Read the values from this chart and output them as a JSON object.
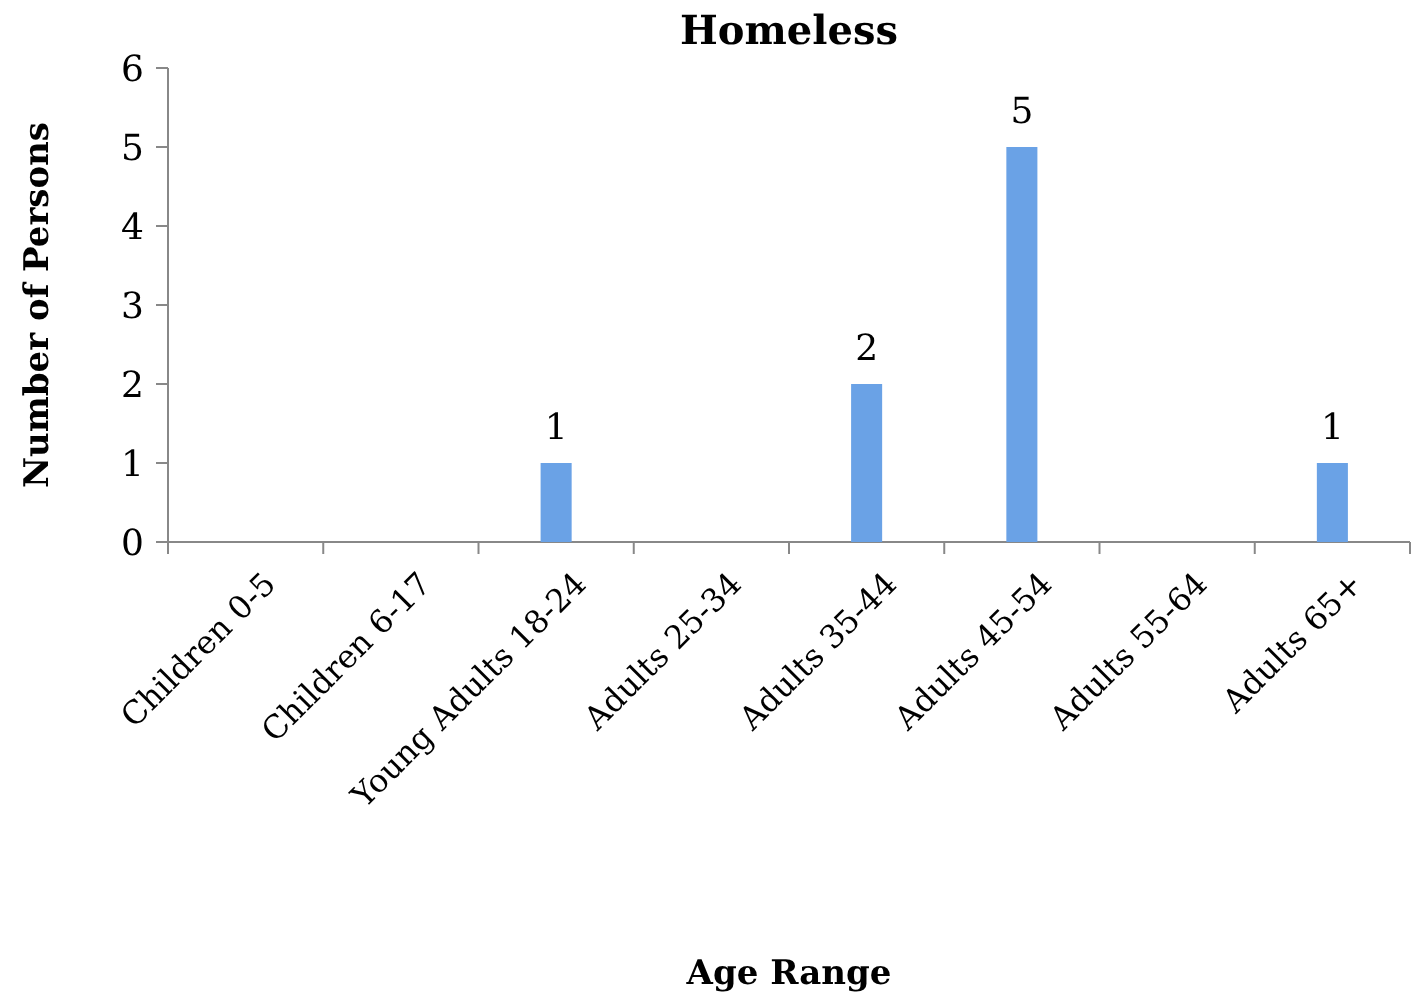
{
  "chart_data": {
    "type": "bar",
    "title": "Homeless",
    "xlabel": "Age Range",
    "ylabel": "Number of Persons",
    "categories": [
      "Children 0-5",
      "Children 6-17",
      "Young Adults 18-24",
      "Adults 25-34",
      "Adults 35-44",
      "Adults 45-54",
      "Adults 55-64",
      "Adults 65+"
    ],
    "values": [
      0,
      0,
      1,
      0,
      2,
      5,
      0,
      1
    ],
    "value_labels": [
      null,
      null,
      "1",
      null,
      "2",
      "5",
      null,
      "1"
    ],
    "color": "#6aa2e6",
    "ylim": [
      0,
      6
    ],
    "yticks": [
      0,
      1,
      2,
      3,
      4,
      5,
      6
    ],
    "grid": false
  }
}
